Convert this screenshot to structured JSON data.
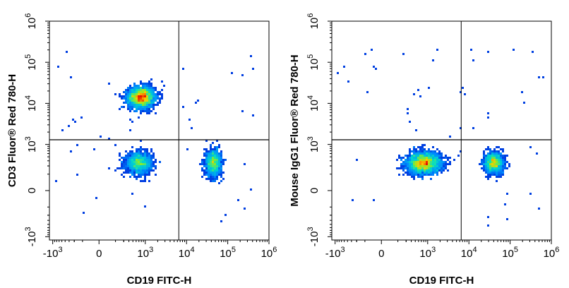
{
  "chart_data": [
    {
      "type": "scatter",
      "title": "",
      "xlabel": "CD19 FITC-H",
      "ylabel": "CD3  Fluor® Red 780-H",
      "scale": "biexponential",
      "xlim": [
        -1000,
        1000000
      ],
      "ylim": [
        -1000,
        1000000
      ],
      "x_ticks": [
        {
          "value": -1000,
          "base": "-10",
          "exp": "3"
        },
        {
          "value": 0,
          "base": "0",
          "exp": ""
        },
        {
          "value": 1000,
          "base": "10",
          "exp": "3"
        },
        {
          "value": 10000,
          "base": "10",
          "exp": "4"
        },
        {
          "value": 100000,
          "base": "10",
          "exp": "5"
        },
        {
          "value": 1000000,
          "base": "10",
          "exp": "6"
        }
      ],
      "y_ticks": [
        {
          "value": -1000,
          "base": "-10",
          "exp": "3"
        },
        {
          "value": 0,
          "base": "0",
          "exp": ""
        },
        {
          "value": 1000,
          "base": "10",
          "exp": "3"
        },
        {
          "value": 10000,
          "base": "10",
          "exp": "4"
        },
        {
          "value": 100000,
          "base": "10",
          "exp": "5"
        },
        {
          "value": 1000000,
          "base": "10",
          "exp": "6"
        }
      ],
      "quadrant_gate": {
        "x": 6500,
        "y": 1300
      },
      "populations": [
        {
          "x": 800,
          "y": 14000,
          "weight": 1.0,
          "spread_x": 1.0,
          "spread_y": 0.8
        },
        {
          "x": 700,
          "y": 350,
          "weight": 0.45,
          "spread_x": 1.0,
          "spread_y": 0.8
        },
        {
          "x": 45000,
          "y": 350,
          "weight": 0.4,
          "spread_x": 0.6,
          "spread_y": 1.0
        }
      ],
      "grid": false,
      "legend": "none"
    },
    {
      "type": "scatter",
      "title": "",
      "xlabel": "CD19 FITC-H",
      "ylabel": "Mouse IgG1 Fluor® Red 780-H",
      "scale": "biexponential",
      "xlim": [
        -1000,
        1000000
      ],
      "ylim": [
        -1000,
        1000000
      ],
      "x_ticks": [
        {
          "value": -1000,
          "base": "-10",
          "exp": "3"
        },
        {
          "value": 0,
          "base": "0",
          "exp": ""
        },
        {
          "value": 1000,
          "base": "10",
          "exp": "3"
        },
        {
          "value": 10000,
          "base": "10",
          "exp": "4"
        },
        {
          "value": 100000,
          "base": "10",
          "exp": "5"
        },
        {
          "value": 1000000,
          "base": "10",
          "exp": "6"
        }
      ],
      "y_ticks": [
        {
          "value": -1000,
          "base": "-10",
          "exp": "3"
        },
        {
          "value": 0,
          "base": "0",
          "exp": ""
        },
        {
          "value": 1000,
          "base": "10",
          "exp": "3"
        },
        {
          "value": 10000,
          "base": "10",
          "exp": "4"
        },
        {
          "value": 100000,
          "base": "10",
          "exp": "5"
        },
        {
          "value": 1000000,
          "base": "10",
          "exp": "6"
        }
      ],
      "quadrant_gate": {
        "x": 6500,
        "y": 1300
      },
      "populations": [
        {
          "x": 800,
          "y": 350,
          "weight": 1.0,
          "spread_x": 1.3,
          "spread_y": 0.8
        },
        {
          "x": 40000,
          "y": 350,
          "weight": 0.45,
          "spread_x": 0.7,
          "spread_y": 0.8
        }
      ],
      "grid": false,
      "legend": "none"
    }
  ]
}
